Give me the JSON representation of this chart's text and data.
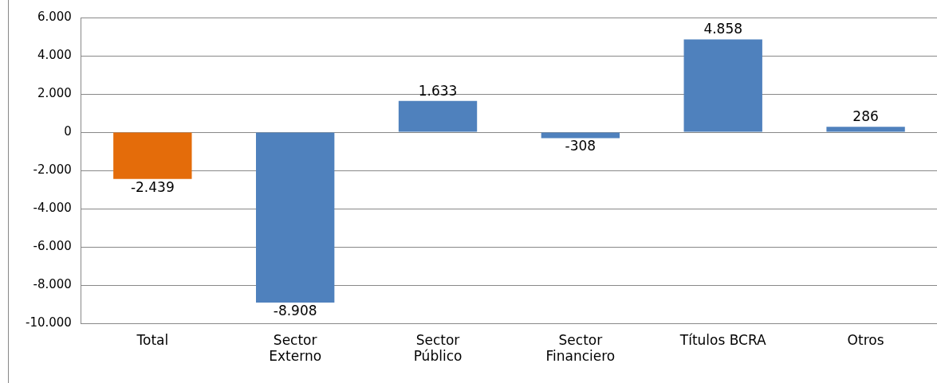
{
  "chart_data": {
    "type": "bar",
    "categories": [
      "Total",
      "Sector\nExterno",
      "Sector\nPúblico",
      "Sector\nFinanciero",
      "Títulos BCRA",
      "Otros"
    ],
    "values": [
      -2439,
      -8908,
      1633,
      -308,
      4858,
      286
    ],
    "colors": [
      "#e46c0a",
      "#4f81bd",
      "#4f81bd",
      "#4f81bd",
      "#4f81bd",
      "#4f81bd"
    ],
    "value_labels": [
      "-2.439",
      "-8.908",
      "1.633",
      "-308",
      "4.858",
      "286"
    ],
    "ylim": [
      -10000,
      6000
    ],
    "yticks": [
      {
        "value": -10000,
        "label": "-10.000"
      },
      {
        "value": -8000,
        "label": "-8.000"
      },
      {
        "value": -6000,
        "label": "-6.000"
      },
      {
        "value": -4000,
        "label": "-4.000"
      },
      {
        "value": -2000,
        "label": "-2.000"
      },
      {
        "value": 0,
        "label": "0"
      },
      {
        "value": 2000,
        "label": "2.000"
      },
      {
        "value": 4000,
        "label": "4.000"
      },
      {
        "value": 6000,
        "label": "6.000"
      }
    ],
    "grid": "y",
    "legend": false
  }
}
